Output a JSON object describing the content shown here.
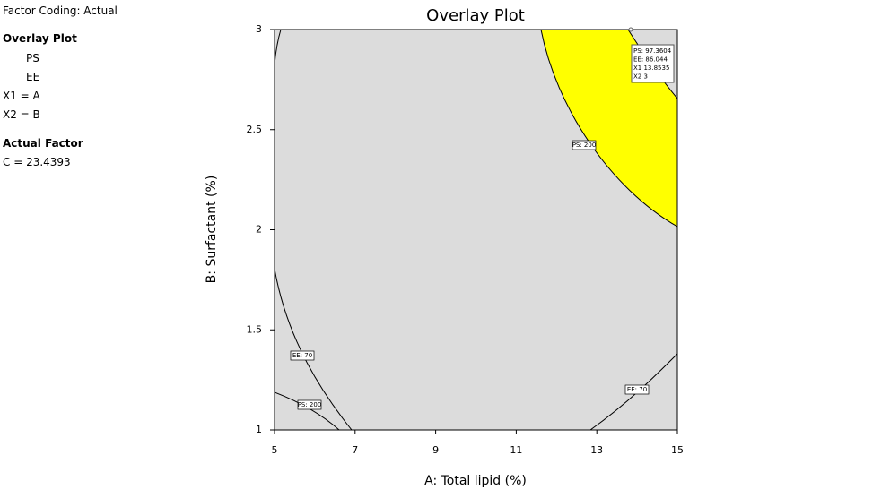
{
  "sidebar": {
    "coding": "Factor Coding: Actual",
    "overlay_heading": "Overlay Plot",
    "responses": [
      "PS",
      "EE"
    ],
    "axes": [
      "X1 = A",
      "X2 = B"
    ],
    "factor_heading": "Actual Factor",
    "factor": "C = 23.4393"
  },
  "chart_data": {
    "type": "overlay",
    "title": "Overlay Plot",
    "x_label": "A: Total lipid (%)",
    "y_label": "B: Surfactant (%)",
    "xlim": [
      5,
      15
    ],
    "xticks": [
      5,
      7,
      9,
      11,
      13,
      15
    ],
    "ylim": [
      1,
      3
    ],
    "yticks": [
      1,
      1.5,
      2,
      2.5,
      3
    ],
    "contour_labels": [
      "EE: 70",
      "PS: 200",
      "PS: 200",
      "EE: 70"
    ],
    "flag": [
      "PS: 97.3604",
      "EE: 86.044",
      "X1 13.8535",
      "X2 3"
    ]
  }
}
